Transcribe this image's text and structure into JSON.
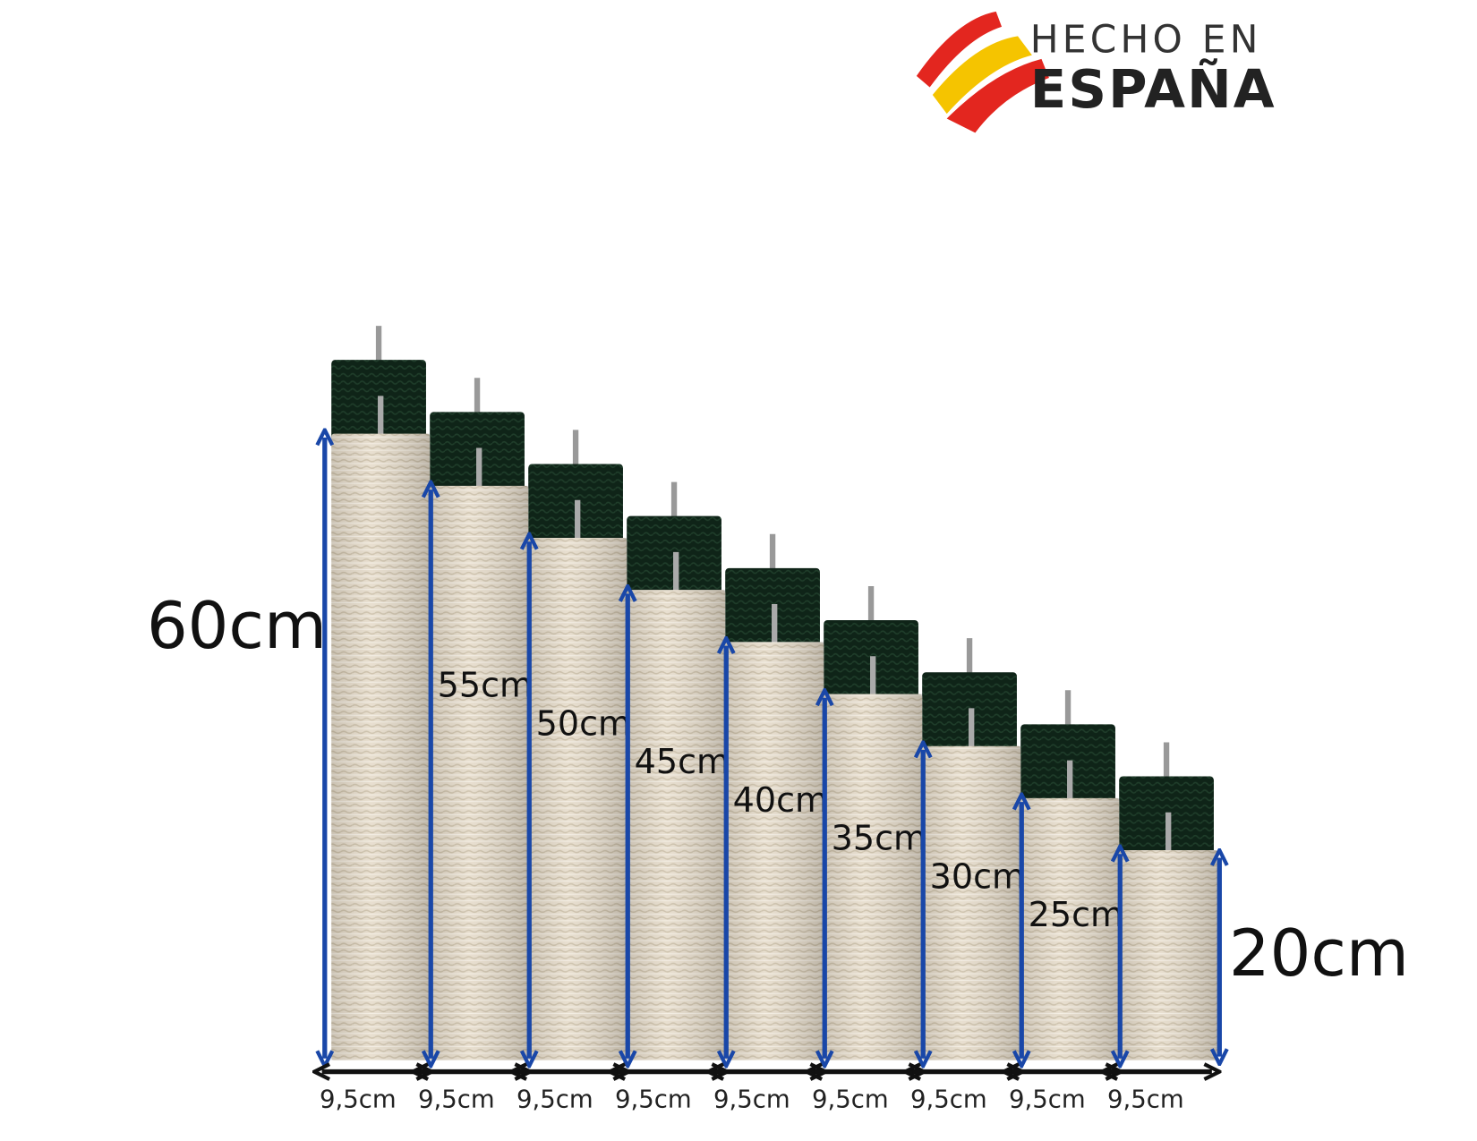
{
  "logo": {
    "line1": "HECHO EN",
    "line2": "ESPAÑA"
  },
  "posts": [
    {
      "height_label": "60cm",
      "width_label": "9,5cm"
    },
    {
      "height_label": "55cm",
      "width_label": "9,5cm"
    },
    {
      "height_label": "50cm",
      "width_label": "9,5cm"
    },
    {
      "height_label": "45cm",
      "width_label": "9,5cm"
    },
    {
      "height_label": "40cm",
      "width_label": "9,5cm"
    },
    {
      "height_label": "35cm",
      "width_label": "9,5cm"
    },
    {
      "height_label": "30cm",
      "width_label": "9,5cm"
    },
    {
      "height_label": "25cm",
      "width_label": "9,5cm"
    },
    {
      "height_label": "20cm",
      "width_label": "9,5cm"
    }
  ]
}
